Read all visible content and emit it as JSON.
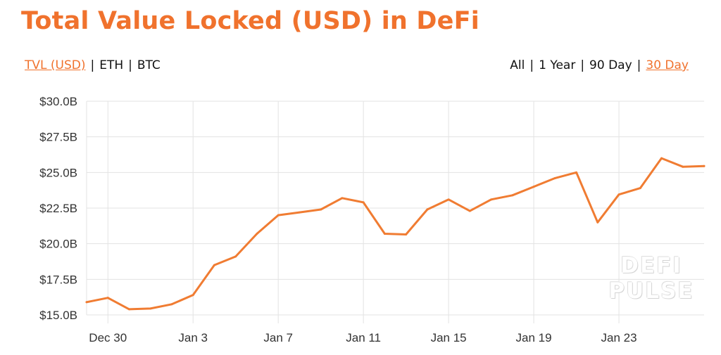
{
  "title": "Total Value Locked (USD) in DeFi",
  "currency_toggle": [
    {
      "label": "TVL (USD)",
      "active": true
    },
    {
      "label": "ETH",
      "active": false
    },
    {
      "label": "BTC",
      "active": false
    }
  ],
  "range_toggle": [
    {
      "label": "All",
      "active": false
    },
    {
      "label": "1 Year",
      "active": false
    },
    {
      "label": "90 Day",
      "active": false
    },
    {
      "label": "30 Day",
      "active": true
    }
  ],
  "separator": "|",
  "watermark": {
    "line1": "DEFI",
    "line2": "PULSE"
  },
  "colors": {
    "accent": "#f0722d",
    "line": "#f07c32",
    "grid": "#e3e3e3",
    "text": "#111111"
  },
  "chart_data": {
    "type": "line",
    "title": "",
    "xlabel": "",
    "ylabel": "",
    "ylim": [
      15.0,
      30.0
    ],
    "y_ticks": [
      {
        "value": 30.0,
        "label": "$30.0B"
      },
      {
        "value": 27.5,
        "label": "$27.5B"
      },
      {
        "value": 25.0,
        "label": "$25.0B"
      },
      {
        "value": 22.5,
        "label": "$22.5B"
      },
      {
        "value": 20.0,
        "label": "$20.0B"
      },
      {
        "value": 17.5,
        "label": "$17.5B"
      },
      {
        "value": 15.0,
        "label": "$15.0B"
      }
    ],
    "x_ticks": [
      {
        "date": "Dec 30",
        "label": "Dec 30"
      },
      {
        "date": "Jan 3",
        "label": "Jan 3"
      },
      {
        "date": "Jan 7",
        "label": "Jan 7"
      },
      {
        "date": "Jan 11",
        "label": "Jan 11"
      },
      {
        "date": "Jan 15",
        "label": "Jan 15"
      },
      {
        "date": "Jan 19",
        "label": "Jan 19"
      },
      {
        "date": "Jan 23",
        "label": "Jan 23"
      }
    ],
    "x_range": [
      "Dec 29",
      "Jan 27"
    ],
    "grid": true,
    "series": [
      {
        "points": [
          {
            "date": "Dec 29",
            "value": 15.9
          },
          {
            "date": "Dec 30",
            "value": 16.2
          },
          {
            "date": "Dec 31",
            "value": 15.4
          },
          {
            "date": "Jan 1",
            "value": 15.45
          },
          {
            "date": "Jan 2",
            "value": 15.75
          },
          {
            "date": "Jan 3",
            "value": 16.4
          },
          {
            "date": "Jan 4",
            "value": 18.5
          },
          {
            "date": "Jan 5",
            "value": 19.1
          },
          {
            "date": "Jan 6",
            "value": 20.7
          },
          {
            "date": "Jan 7",
            "value": 22.0
          },
          {
            "date": "Jan 8",
            "value": 22.2
          },
          {
            "date": "Jan 9",
            "value": 22.4
          },
          {
            "date": "Jan 10",
            "value": 23.2
          },
          {
            "date": "Jan 11",
            "value": 22.9
          },
          {
            "date": "Jan 12",
            "value": 20.7
          },
          {
            "date": "Jan 13",
            "value": 20.65
          },
          {
            "date": "Jan 14",
            "value": 22.4
          },
          {
            "date": "Jan 15",
            "value": 23.1
          },
          {
            "date": "Jan 16",
            "value": 22.3
          },
          {
            "date": "Jan 17",
            "value": 23.1
          },
          {
            "date": "Jan 18",
            "value": 23.4
          },
          {
            "date": "Jan 19",
            "value": 24.0
          },
          {
            "date": "Jan 20",
            "value": 24.6
          },
          {
            "date": "Jan 21",
            "value": 25.0
          },
          {
            "date": "Jan 22",
            "value": 21.5
          },
          {
            "date": "Jan 23",
            "value": 23.45
          },
          {
            "date": "Jan 24",
            "value": 23.9
          },
          {
            "date": "Jan 25",
            "value": 26.0
          },
          {
            "date": "Jan 26",
            "value": 25.4
          },
          {
            "date": "Jan 27",
            "value": 25.45
          }
        ]
      }
    ]
  }
}
